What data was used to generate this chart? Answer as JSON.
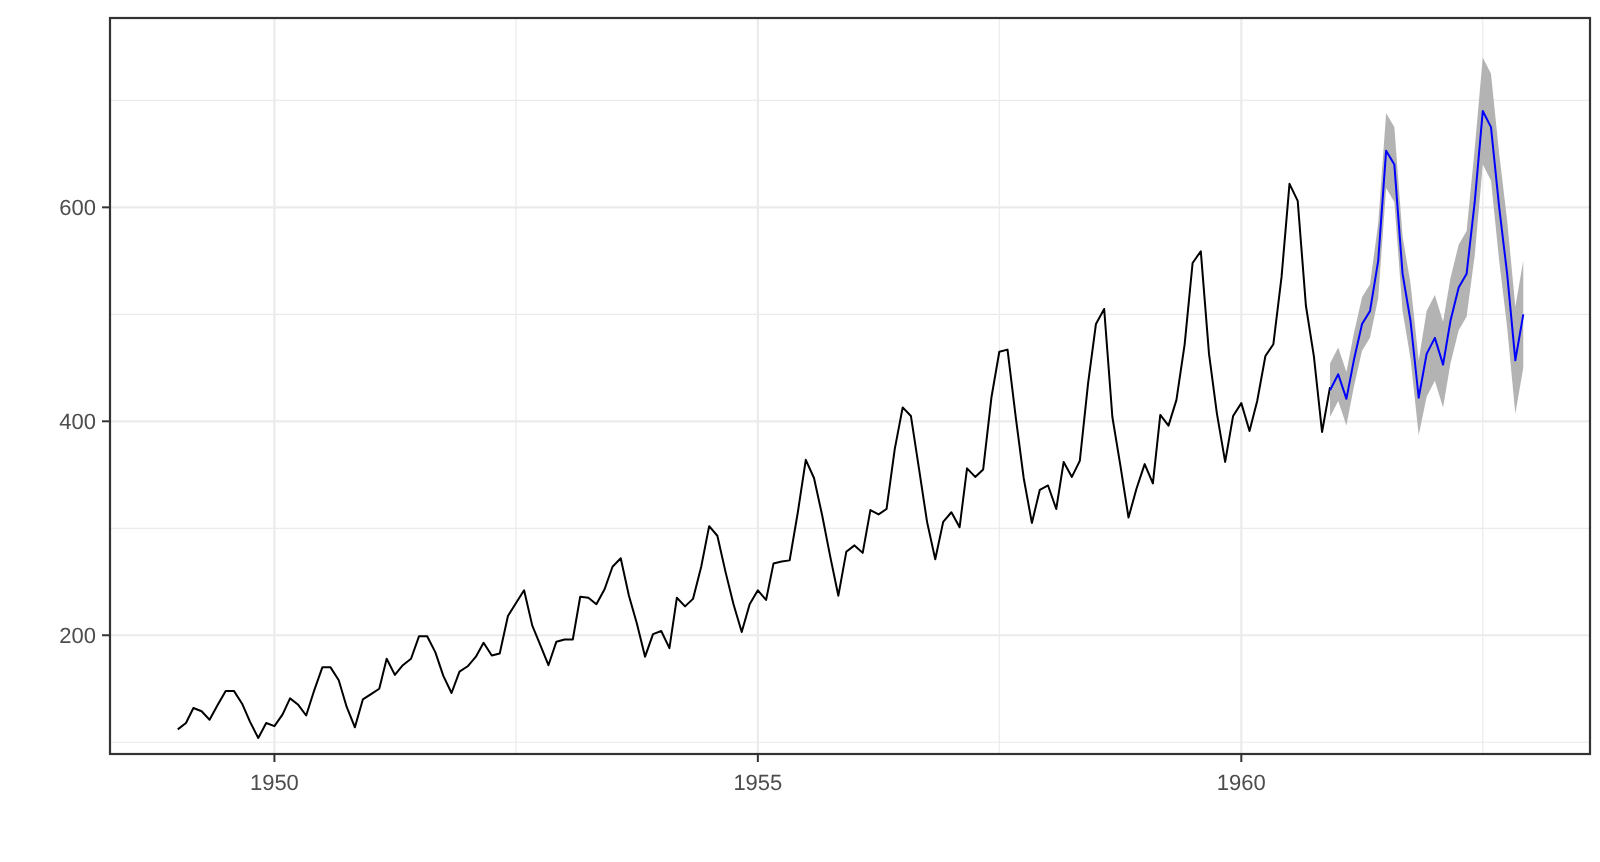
{
  "chart_data": {
    "type": "line",
    "xlim": [
      "1948-04-20",
      "1963-08-10"
    ],
    "ylim": [
      89,
      777
    ],
    "xticks": [
      {
        "value": "1950",
        "label": "1950"
      },
      {
        "value": "1952-07",
        "label": null
      },
      {
        "value": "1955",
        "label": "1955"
      },
      {
        "value": "1957-07",
        "label": null
      },
      {
        "value": "1960",
        "label": "1960"
      },
      {
        "value": "1962-07",
        "label": null
      }
    ],
    "yticks": [
      {
        "value": 100,
        "label": null
      },
      200,
      {
        "value": 300,
        "label": null
      },
      400,
      {
        "value": 500,
        "label": null
      },
      600,
      {
        "value": 700,
        "label": null
      }
    ],
    "grid": true,
    "marker": "none",
    "line_style": "solid",
    "series": [
      {
        "color": "#000000",
        "x": [
          "1949-01",
          "1949-02",
          "1949-03",
          "1949-04",
          "1949-05",
          "1949-06",
          "1949-07",
          "1949-08",
          "1949-09",
          "1949-10",
          "1949-11",
          "1949-12",
          "1950-01",
          "1950-02",
          "1950-03",
          "1950-04",
          "1950-05",
          "1950-06",
          "1950-07",
          "1950-08",
          "1950-09",
          "1950-10",
          "1950-11",
          "1950-12",
          "1951-01",
          "1951-02",
          "1951-03",
          "1951-04",
          "1951-05",
          "1951-06",
          "1951-07",
          "1951-08",
          "1951-09",
          "1951-10",
          "1951-11",
          "1951-12",
          "1952-01",
          "1952-02",
          "1952-03",
          "1952-04",
          "1952-05",
          "1952-06",
          "1952-07",
          "1952-08",
          "1952-09",
          "1952-10",
          "1952-11",
          "1952-12",
          "1953-01",
          "1953-02",
          "1953-03",
          "1953-04",
          "1953-05",
          "1953-06",
          "1953-07",
          "1953-08",
          "1953-09",
          "1953-10",
          "1953-11",
          "1953-12",
          "1954-01",
          "1954-02",
          "1954-03",
          "1954-04",
          "1954-05",
          "1954-06",
          "1954-07",
          "1954-08",
          "1954-09",
          "1954-10",
          "1954-11",
          "1954-12",
          "1955-01",
          "1955-02",
          "1955-03",
          "1955-04",
          "1955-05",
          "1955-06",
          "1955-07",
          "1955-08",
          "1955-09",
          "1955-10",
          "1955-11",
          "1955-12",
          "1956-01",
          "1956-02",
          "1956-03",
          "1956-04",
          "1956-05",
          "1956-06",
          "1956-07",
          "1956-08",
          "1956-09",
          "1956-10",
          "1956-11",
          "1956-12",
          "1957-01",
          "1957-02",
          "1957-03",
          "1957-04",
          "1957-05",
          "1957-06",
          "1957-07",
          "1957-08",
          "1957-09",
          "1957-10",
          "1957-11",
          "1957-12",
          "1958-01",
          "1958-02",
          "1958-03",
          "1958-04",
          "1958-05",
          "1958-06",
          "1958-07",
          "1958-08",
          "1958-09",
          "1958-10",
          "1958-11",
          "1958-12",
          "1959-01",
          "1959-02",
          "1959-03",
          "1959-04",
          "1959-05",
          "1959-06",
          "1959-07",
          "1959-08",
          "1959-09",
          "1959-10",
          "1959-11",
          "1959-12",
          "1960-01",
          "1960-02",
          "1960-03",
          "1960-04",
          "1960-05",
          "1960-06",
          "1960-07",
          "1960-08",
          "1960-09",
          "1960-10",
          "1960-11",
          "1960-12"
        ],
        "values": [
          112,
          118,
          132,
          129,
          121,
          135,
          148,
          148,
          136,
          119,
          104,
          118,
          115,
          126,
          141,
          135,
          125,
          149,
          170,
          170,
          158,
          133,
          114,
          140,
          145,
          150,
          178,
          163,
          172,
          178,
          199,
          199,
          184,
          162,
          146,
          166,
          171,
          180,
          193,
          181,
          183,
          218,
          230,
          242,
          209,
          191,
          172,
          194,
          196,
          196,
          236,
          235,
          229,
          243,
          264,
          272,
          237,
          211,
          180,
          201,
          204,
          188,
          235,
          227,
          234,
          264,
          302,
          293,
          259,
          229,
          203,
          229,
          242,
          233,
          267,
          269,
          270,
          315,
          364,
          347,
          312,
          274,
          237,
          278,
          284,
          277,
          317,
          313,
          318,
          374,
          413,
          405,
          355,
          306,
          271,
          306,
          315,
          301,
          356,
          348,
          355,
          422,
          465,
          467,
          404,
          347,
          305,
          336,
          340,
          318,
          362,
          348,
          363,
          435,
          491,
          505,
          404,
          359,
          310,
          337,
          360,
          342,
          406,
          396,
          420,
          472,
          548,
          559,
          463,
          407,
          362,
          405,
          417,
          391,
          419,
          461,
          472,
          535,
          622,
          606,
          508,
          461,
          390,
          432
        ]
      },
      {
        "color": "#0000ff",
        "x": [
          "1960-12",
          "1961-01",
          "1961-02",
          "1961-03",
          "1961-04",
          "1961-05",
          "1961-06",
          "1961-07",
          "1961-08",
          "1961-09",
          "1961-10",
          "1961-11",
          "1961-12",
          "1962-01",
          "1962-02",
          "1962-03",
          "1962-04",
          "1962-05",
          "1962-06",
          "1962-07",
          "1962-08",
          "1962-09",
          "1962-10",
          "1962-11",
          "1962-12"
        ],
        "values": [
          429,
          444,
          421,
          457,
          491,
          503,
          550,
          653,
          640,
          538,
          494,
          422,
          463,
          478,
          453,
          494,
          525,
          538,
          606,
          690,
          675,
          600,
          538,
          457,
          500
        ],
        "lower": [
          404,
          419,
          396,
          432,
          466,
          478,
          515,
          618,
          605,
          503,
          459,
          387,
          423,
          438,
          413,
          454,
          485,
          498,
          556,
          640,
          625,
          550,
          488,
          407,
          450
        ],
        "upper": [
          454,
          469,
          446,
          482,
          516,
          528,
          585,
          688,
          675,
          573,
          529,
          457,
          503,
          518,
          493,
          534,
          565,
          578,
          656,
          740,
          725,
          650,
          588,
          507,
          550
        ]
      }
    ]
  }
}
